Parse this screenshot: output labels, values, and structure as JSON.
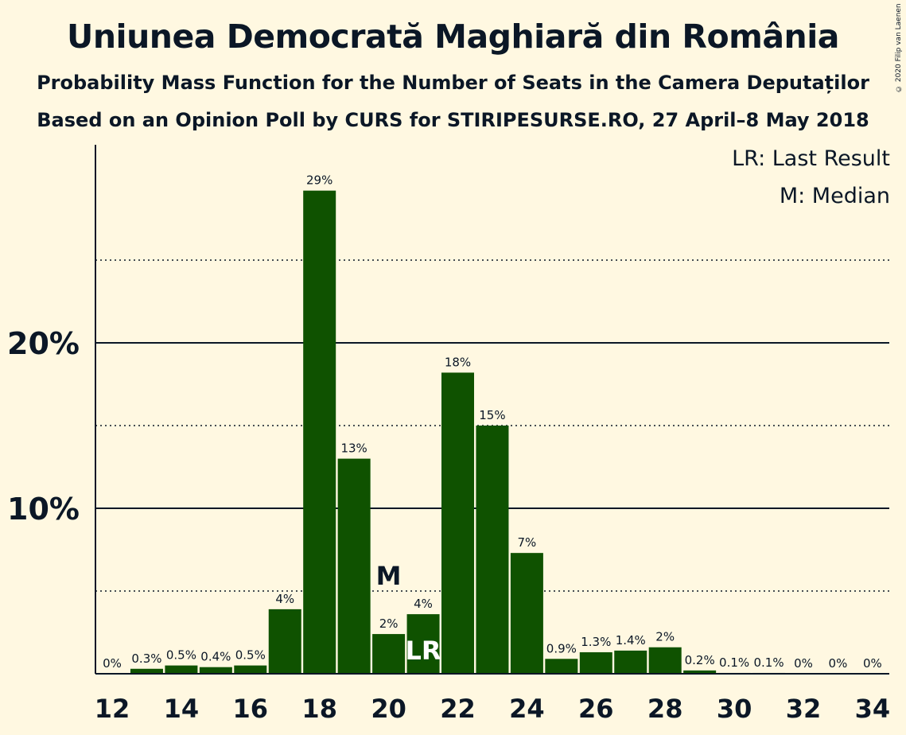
{
  "title": "Uniunea Democrată Maghiară din România",
  "subtitle": "Probability Mass Function for the Number of Seats in the Camera Deputaților",
  "subtitle2": "Based on an Opinion Poll by CURS for STIRIPESURSE.RO, 27 April–8 May 2018",
  "copyright": "© 2020 Filip van Laenen",
  "legend": {
    "last_result": "LR: Last Result",
    "median": "M: Median"
  },
  "colors": {
    "bar": "#0f5200",
    "background": "#fff8e1",
    "text": "#0b1726"
  },
  "chart_data": {
    "type": "bar",
    "x": [
      12,
      13,
      14,
      15,
      16,
      17,
      18,
      19,
      20,
      21,
      22,
      23,
      24,
      25,
      26,
      27,
      28,
      29,
      30,
      31,
      32,
      33,
      34
    ],
    "values": [
      0,
      0.3,
      0.5,
      0.4,
      0.5,
      3.9,
      29.2,
      13.0,
      2.4,
      3.6,
      18.2,
      15.0,
      7.3,
      0.9,
      1.3,
      1.4,
      1.6,
      0.2,
      0.05,
      0.05,
      0,
      0,
      0
    ],
    "data_labels": [
      "0%",
      "0.3%",
      "0.5%",
      "0.4%",
      "0.5%",
      "4%",
      "29%",
      "13%",
      "2%",
      "4%",
      "18%",
      "15%",
      "7%",
      "0.9%",
      "1.3%",
      "1.4%",
      "2%",
      "0.2%",
      "0.1%",
      "0.1%",
      "0%",
      "0%",
      "0%"
    ],
    "x_tick_labels": [
      "12",
      "14",
      "16",
      "18",
      "20",
      "22",
      "24",
      "26",
      "28",
      "30",
      "32",
      "34"
    ],
    "y_tick_labels": [
      "10%",
      "20%"
    ],
    "ylim": [
      0,
      32
    ],
    "major_gridlines": [
      10,
      20
    ],
    "minor_gridlines": [
      5,
      15,
      25
    ],
    "median_seat": 20,
    "median_label": "M",
    "last_result_seat": 21,
    "last_result_label": "LR"
  }
}
